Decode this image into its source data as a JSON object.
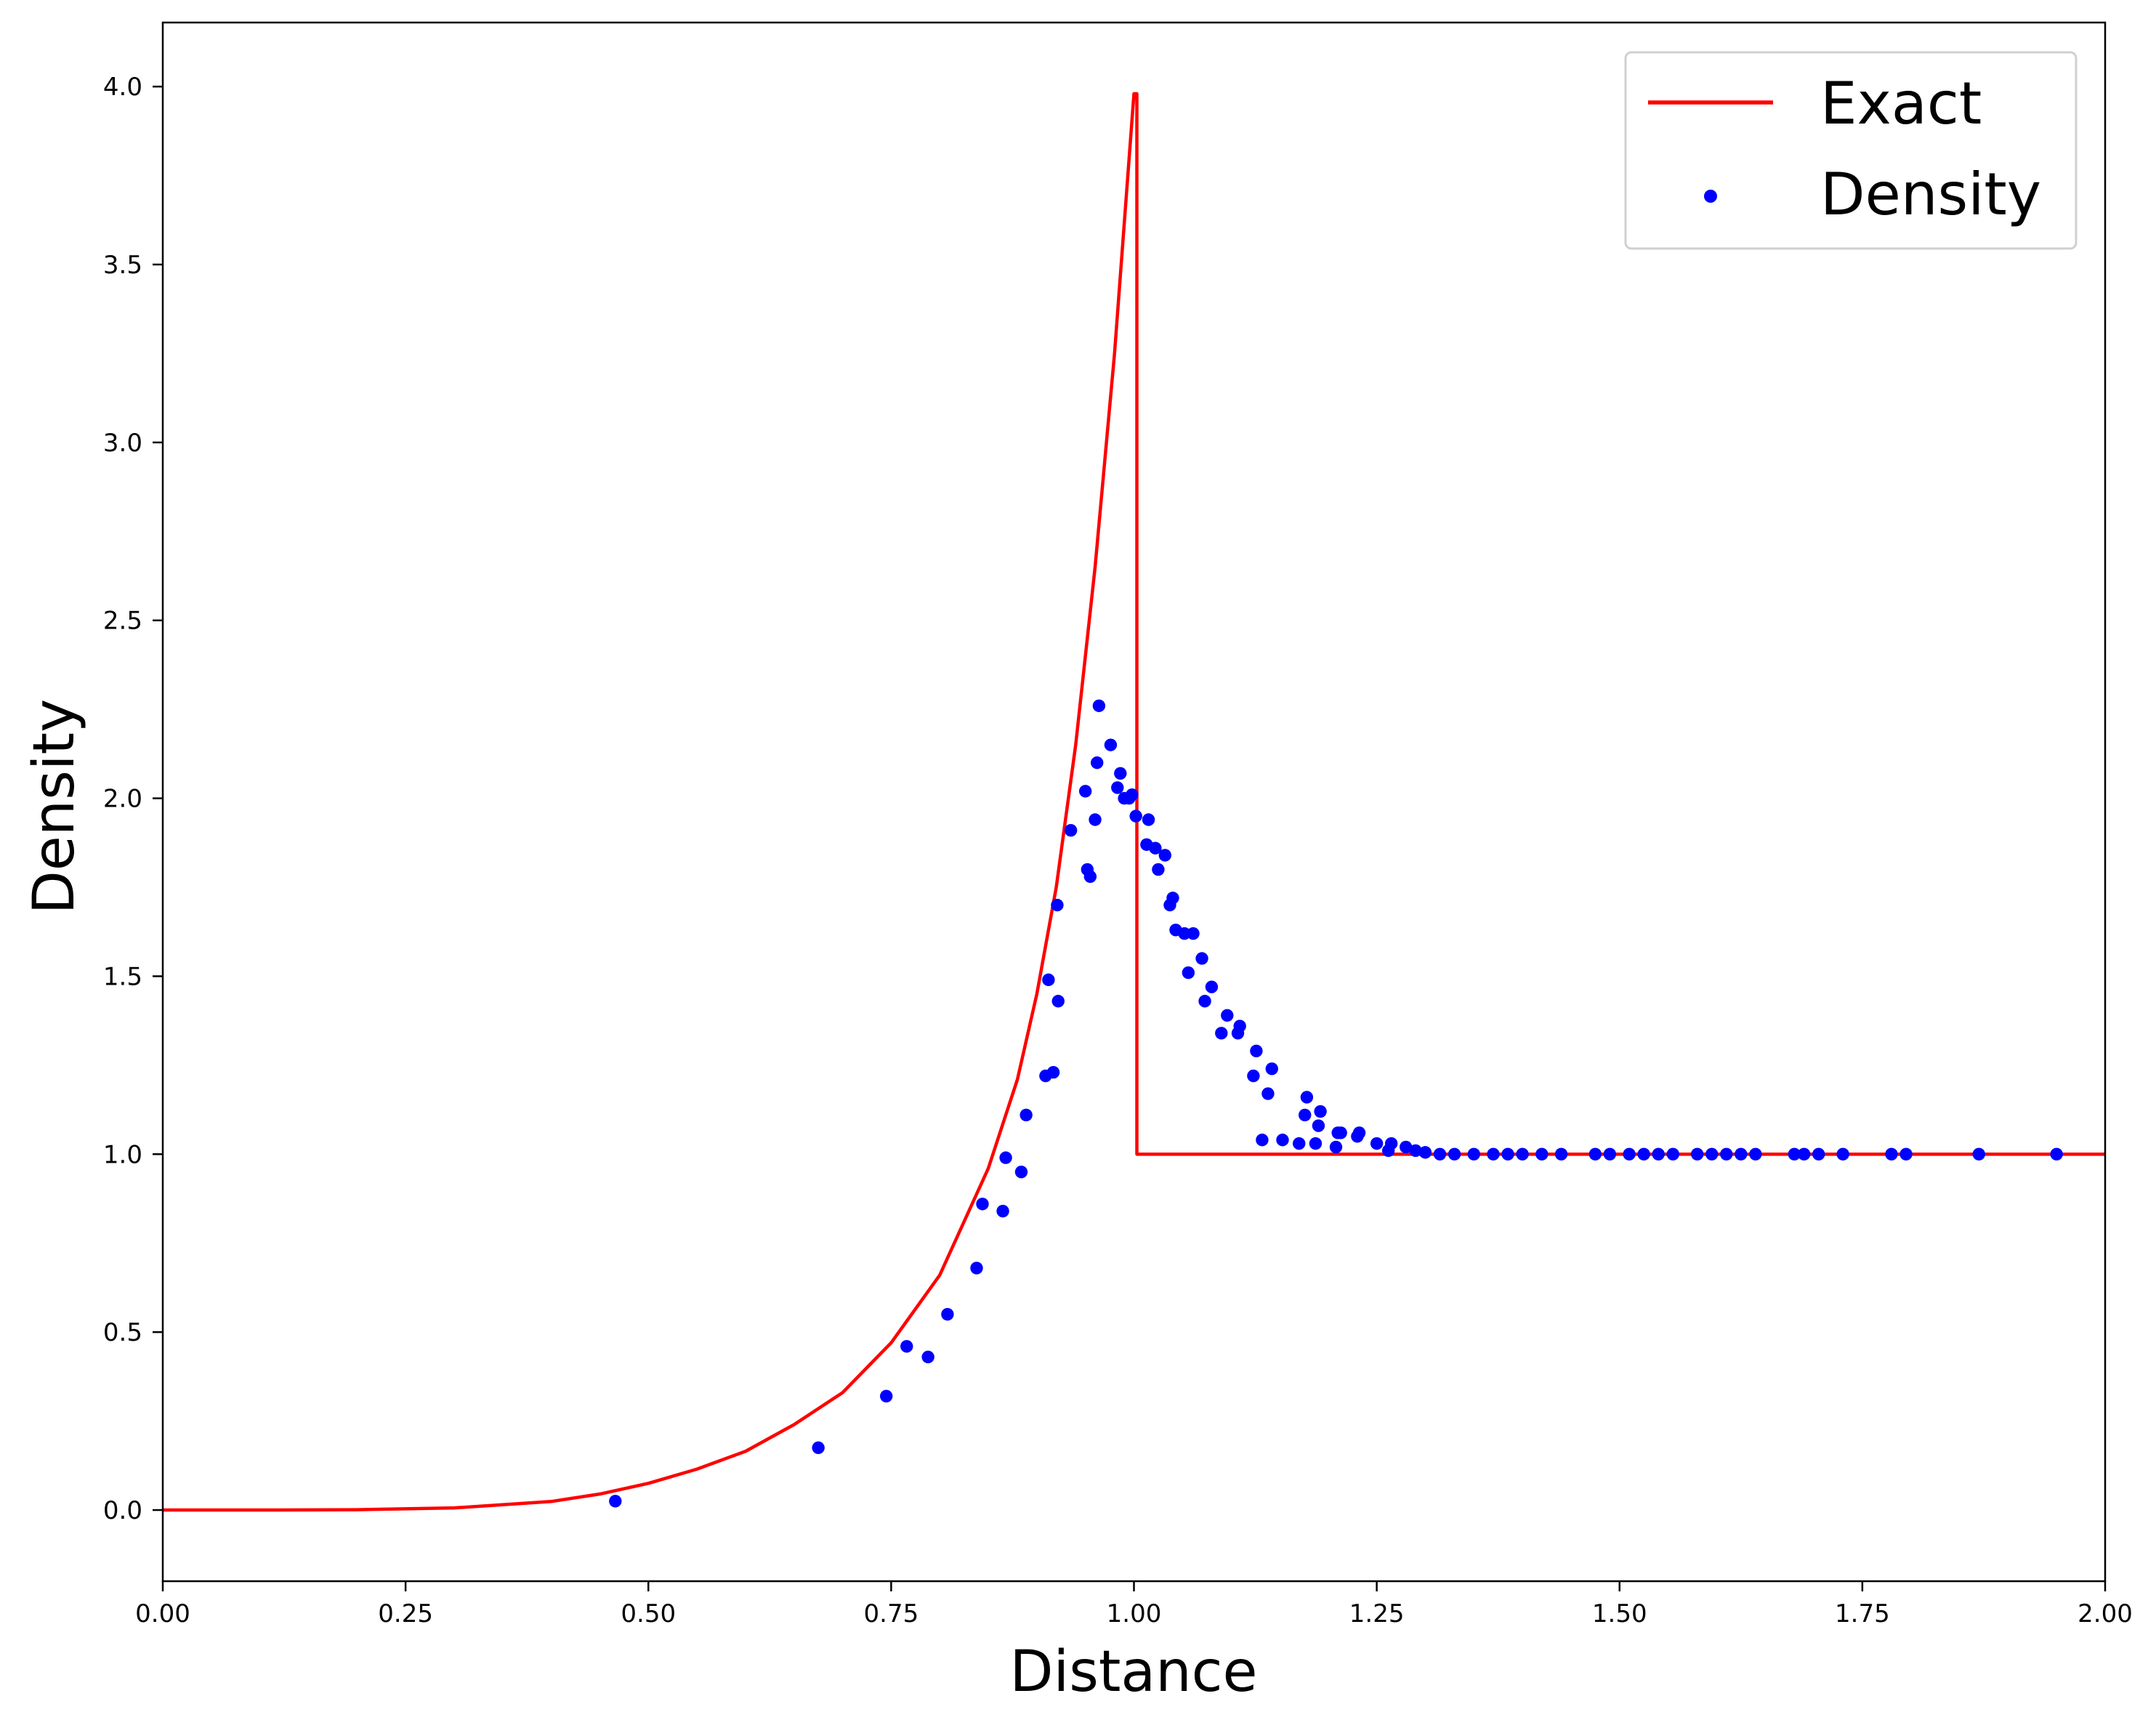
{
  "chart_data": {
    "type": "line+scatter",
    "xlabel": "Distance",
    "ylabel": "Density",
    "xlim": [
      0.0,
      2.0
    ],
    "ylim": [
      -0.2,
      4.18
    ],
    "xticks": [
      "0.00",
      "0.25",
      "0.50",
      "0.75",
      "1.00",
      "1.25",
      "1.50",
      "1.75",
      "2.00"
    ],
    "yticks": [
      "0.0",
      "0.5",
      "1.0",
      "1.5",
      "2.0",
      "2.5",
      "3.0",
      "3.5",
      "4.0"
    ],
    "grid": false,
    "legend": {
      "placement": "top-right",
      "entries": [
        {
          "label": "Exact",
          "marker": "line"
        },
        {
          "label": "Density",
          "marker": "dot"
        }
      ]
    },
    "series": [
      {
        "name": "Exact",
        "type": "line",
        "color": "#ff0000",
        "x": [
          0.0,
          0.1,
          0.2,
          0.3,
          0.4,
          0.45,
          0.5,
          0.55,
          0.6,
          0.65,
          0.7,
          0.75,
          0.8,
          0.85,
          0.88,
          0.9,
          0.92,
          0.94,
          0.96,
          0.98,
          1.0,
          1.0,
          1.003,
          1.003,
          1.5,
          2.0
        ],
        "y": [
          0.0,
          0.0,
          0.001,
          0.006,
          0.024,
          0.045,
          0.075,
          0.115,
          0.165,
          0.24,
          0.33,
          0.47,
          0.66,
          0.96,
          1.21,
          1.45,
          1.75,
          2.15,
          2.65,
          3.25,
          3.98,
          3.98,
          3.98,
          1.0,
          1.0,
          1.0
        ]
      },
      {
        "name": "Density",
        "type": "scatter",
        "color": "#0000ff",
        "x": [
          0.466,
          0.675,
          0.745,
          0.766,
          0.788,
          0.808,
          0.838,
          0.844,
          0.865,
          0.868,
          0.884,
          0.889,
          0.909,
          0.912,
          0.917,
          0.921,
          0.922,
          0.935,
          0.95,
          0.952,
          0.955,
          0.96,
          0.962,
          0.964,
          0.976,
          0.983,
          0.986,
          0.99,
          0.995,
          0.998,
          1.002,
          1.013,
          1.015,
          1.022,
          1.025,
          1.032,
          1.037,
          1.04,
          1.043,
          1.052,
          1.056,
          1.061,
          1.07,
          1.073,
          1.08,
          1.09,
          1.096,
          1.107,
          1.109,
          1.123,
          1.126,
          1.132,
          1.138,
          1.142,
          1.153,
          1.17,
          1.176,
          1.178,
          1.187,
          1.19,
          1.192,
          1.208,
          1.21,
          1.213,
          1.23,
          1.232,
          1.25,
          1.262,
          1.265,
          1.28,
          1.29,
          1.3,
          1.315,
          1.33,
          1.35,
          1.37,
          1.385,
          1.4,
          1.42,
          1.44,
          1.475,
          1.49,
          1.51,
          1.525,
          1.54,
          1.555,
          1.58,
          1.595,
          1.61,
          1.625,
          1.64,
          1.68,
          1.69,
          1.705,
          1.73,
          1.78,
          1.795,
          1.87,
          1.95
        ],
        "y": [
          0.025,
          0.175,
          0.32,
          0.46,
          0.43,
          0.55,
          0.68,
          0.86,
          0.84,
          0.99,
          0.95,
          1.11,
          1.22,
          1.49,
          1.23,
          1.7,
          1.43,
          1.91,
          2.02,
          1.8,
          1.78,
          1.94,
          2.1,
          2.26,
          2.15,
          2.03,
          2.07,
          2.0,
          2.0,
          2.01,
          1.95,
          1.87,
          1.94,
          1.86,
          1.8,
          1.84,
          1.7,
          1.72,
          1.63,
          1.62,
          1.51,
          1.62,
          1.55,
          1.43,
          1.47,
          1.34,
          1.39,
          1.34,
          1.36,
          1.22,
          1.29,
          1.04,
          1.17,
          1.24,
          1.04,
          1.03,
          1.11,
          1.16,
          1.03,
          1.08,
          1.12,
          1.02,
          1.06,
          1.06,
          1.05,
          1.06,
          1.03,
          1.01,
          1.03,
          1.02,
          1.01,
          1.005,
          1.0,
          1.0,
          1.0,
          1.0,
          1.0,
          1.0,
          1.0,
          1.0,
          1.0,
          1.0,
          1.0,
          1.0,
          1.0,
          1.0,
          1.0,
          1.0,
          1.0,
          1.0,
          1.0,
          1.0,
          1.0,
          1.0,
          1.0,
          1.0,
          1.0,
          1.0,
          1.0
        ]
      }
    ]
  }
}
